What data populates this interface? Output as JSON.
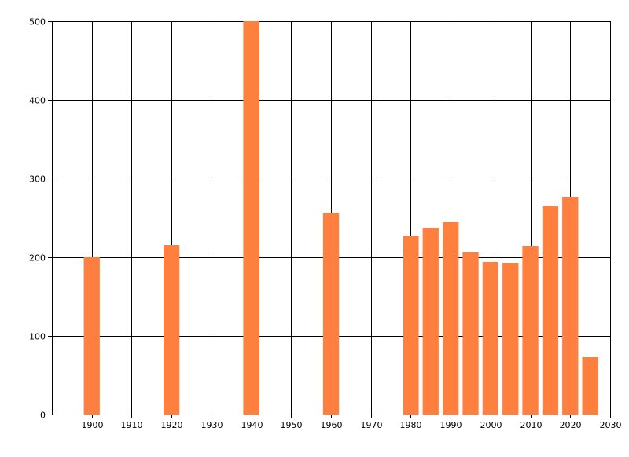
{
  "chart_data": {
    "type": "bar",
    "title": "",
    "xlabel": "",
    "ylabel": "",
    "xlim": [
      1890,
      2030
    ],
    "ylim": [
      0,
      500
    ],
    "xticks": [
      1900,
      1910,
      1920,
      1930,
      1940,
      1950,
      1960,
      1970,
      1980,
      1990,
      2000,
      2010,
      2020,
      2030
    ],
    "yticks": [
      0,
      100,
      200,
      300,
      400,
      500
    ],
    "grid": true,
    "legend": "none",
    "colors": {
      "bar": "#ff7f3f",
      "grid": "#000000",
      "axis": "#000000"
    },
    "series": [
      {
        "x": [
          1900,
          1920,
          1940,
          1960,
          1980,
          1985,
          1990,
          1995,
          2000,
          2005,
          2010,
          2015,
          2020,
          2025
        ],
        "values": [
          200,
          215,
          500,
          256,
          227,
          237,
          245,
          206,
          194,
          193,
          214,
          265,
          277,
          73
        ]
      }
    ]
  }
}
